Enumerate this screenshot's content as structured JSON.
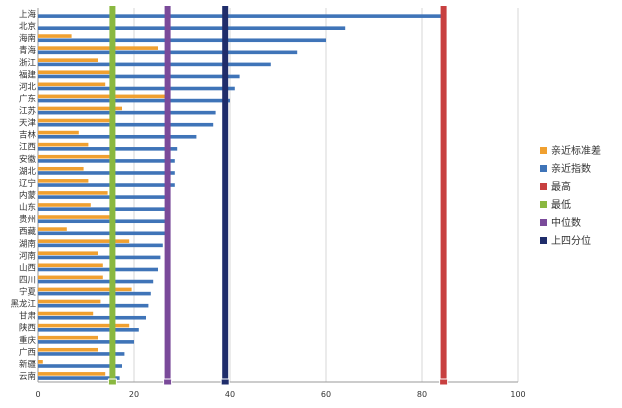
{
  "chart_data": {
    "type": "bar",
    "orientation": "horizontal",
    "title": "",
    "xlabel": "",
    "ylabel": "",
    "xlim": [
      0,
      100
    ],
    "xticks": [
      0,
      20,
      40,
      60,
      80,
      100
    ],
    "grid": true,
    "legend_position": "right",
    "categories": [
      "上海",
      "北京",
      "海南",
      "青海",
      "浙江",
      "福建",
      "河北",
      "广东",
      "江苏",
      "天津",
      "吉林",
      "江西",
      "安徽",
      "湖北",
      "辽宁",
      "内蒙",
      "山东",
      "贵州",
      "西藏",
      "湖南",
      "河南",
      "山西",
      "四川",
      "宁夏",
      "黑龙江",
      "甘肃",
      "陕西",
      "重庆",
      "广西",
      "新疆",
      "云南"
    ],
    "series": [
      {
        "name": "亲近标准差",
        "color": "#f0a030",
        "values": [
          0,
          0,
          7,
          25,
          12.5,
          16,
          14,
          26.5,
          17.5,
          15,
          8.5,
          10.5,
          15,
          9.5,
          10.5,
          14.5,
          11,
          15,
          6,
          19,
          12.5,
          13.5,
          13.5,
          19.5,
          13,
          11.5,
          19,
          12.5,
          12.5,
          1,
          14
        ]
      },
      {
        "name": "亲近指数",
        "color": "#3f74b8",
        "values": [
          84,
          64,
          60,
          54,
          48.5,
          42,
          41,
          40,
          37,
          36.5,
          33,
          29,
          28.5,
          28.5,
          28.5,
          27.5,
          27,
          26.5,
          26.5,
          26,
          25.5,
          25,
          24,
          23.5,
          23,
          22.5,
          21,
          20,
          18,
          17.5,
          17
        ]
      }
    ],
    "reference_lines": [
      {
        "name": "最高",
        "value": 84.5,
        "color": "#c84040"
      },
      {
        "name": "最低",
        "value": 15.5,
        "color": "#8ab840"
      },
      {
        "name": "中位数",
        "value": 27,
        "color": "#7a4a9a"
      },
      {
        "name": "上四分位",
        "value": 39,
        "color": "#1f2d6b"
      }
    ]
  }
}
